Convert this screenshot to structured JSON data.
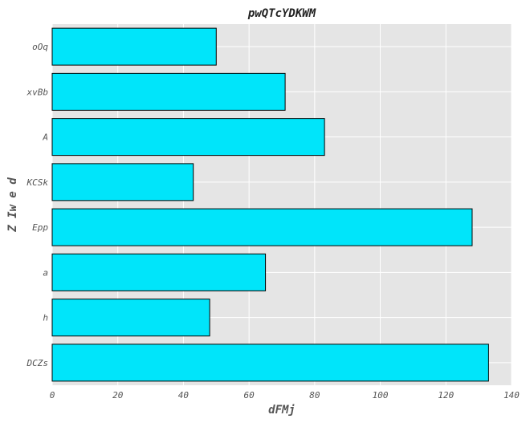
{
  "chart_data": {
    "type": "bar",
    "orientation": "horizontal",
    "title": "pwQTcYDKWM",
    "xlabel": "dFMj",
    "ylabel": "Z Iw e d",
    "categories": [
      "oOq",
      "xvBb",
      "A",
      "KCSk",
      "Epp",
      "a",
      "h",
      "DCZs"
    ],
    "values": [
      50,
      71,
      83,
      43,
      128,
      65,
      48,
      133
    ],
    "xlim": [
      0,
      140
    ],
    "xticks": [
      0,
      20,
      40,
      60,
      80,
      100,
      120,
      140
    ],
    "grid": true,
    "bar_color": "#00e5fa",
    "bar_edge_color": "#000000",
    "plot_background": "#e5e5e5",
    "grid_color": "#ffffff"
  }
}
